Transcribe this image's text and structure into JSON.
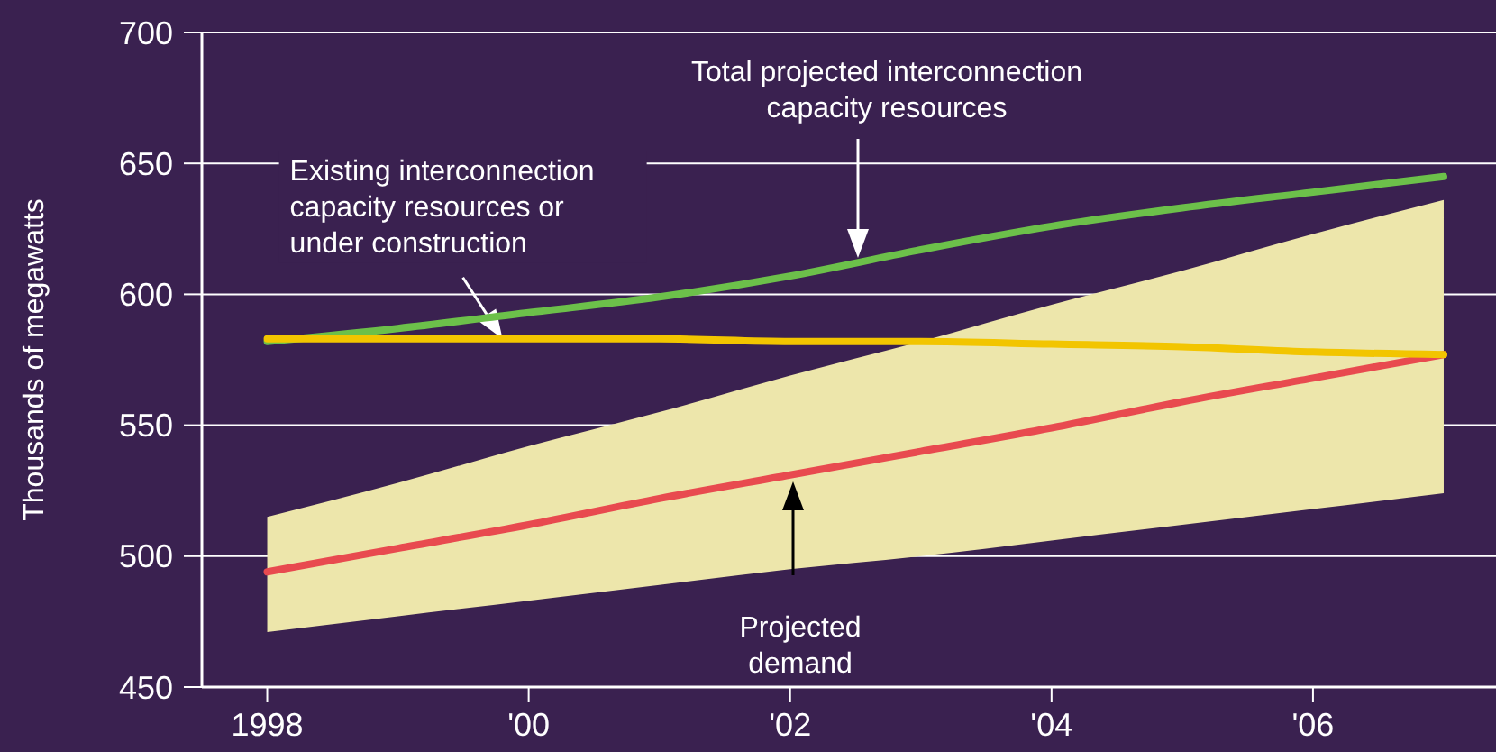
{
  "chart_data": {
    "type": "line",
    "ylabel": "Thousands of megawatts",
    "x": [
      1998,
      1999,
      2000,
      2001,
      2002,
      2003,
      2004,
      2005,
      2006,
      2007
    ],
    "xlim": [
      1997.5,
      2007.4
    ],
    "xticks": [
      1998,
      {
        "value": 2000,
        "label": "'00"
      },
      {
        "value": 2002,
        "label": "'02"
      },
      {
        "value": 2004,
        "label": "'04"
      },
      {
        "value": 2006,
        "label": "'06"
      }
    ],
    "ylim": [
      450,
      700
    ],
    "yticks": [
      450,
      500,
      550,
      600,
      650,
      700
    ],
    "grid": "y",
    "series": [
      {
        "color": "#e84a4f",
        "values": [
          494,
          503,
          512,
          522,
          531,
          540,
          549,
          559,
          568,
          577
        ],
        "lower": [
          471,
          477,
          483,
          489,
          495,
          500,
          506,
          512,
          518,
          524
        ],
        "upper": [
          515,
          528,
          542,
          555,
          569,
          582,
          596,
          609,
          623,
          636
        ]
      },
      {
        "color": "#6cc04a",
        "values": [
          582,
          587,
          593,
          599,
          607,
          617,
          626,
          633,
          639,
          645
        ]
      },
      {
        "color": "#f2c500",
        "values": [
          583,
          583,
          583,
          583,
          582,
          582,
          581,
          580,
          578,
          577
        ]
      }
    ],
    "annotations": [
      "Total projected interconnection capacity resources",
      {
        "text": "Existing interconnection capacity resources or under construction",
        "x": 1999.8,
        "y": 583
      },
      "Projected demand"
    ]
  }
}
